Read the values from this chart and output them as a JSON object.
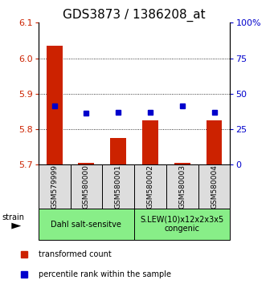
{
  "title": "GDS3873 / 1386208_at",
  "samples": [
    "GSM579999",
    "GSM580000",
    "GSM580001",
    "GSM580002",
    "GSM580003",
    "GSM580004"
  ],
  "red_values": [
    6.035,
    5.705,
    5.775,
    5.825,
    5.705,
    5.825
  ],
  "blue_values": [
    5.865,
    5.845,
    5.848,
    5.848,
    5.866,
    5.847
  ],
  "ylim_left": [
    5.7,
    6.1
  ],
  "ylim_right": [
    0,
    100
  ],
  "yticks_left": [
    5.7,
    5.8,
    5.9,
    6.0,
    6.1
  ],
  "yticks_right": [
    0,
    25,
    50,
    75,
    100
  ],
  "ytick_labels_right": [
    "0",
    "25",
    "50",
    "75",
    "100%"
  ],
  "group1_label": "Dahl salt-sensitve",
  "group2_label": "S.LEW(10)x12x2x3x5\ncongenic",
  "group1_indices": [
    0,
    1,
    2
  ],
  "group2_indices": [
    3,
    4,
    5
  ],
  "legend_red": "transformed count",
  "legend_blue": "percentile rank within the sample",
  "strain_label": "strain",
  "bar_bottom": 5.7,
  "bar_width": 0.5,
  "red_color": "#cc2200",
  "blue_color": "#0000cc",
  "group_bg_color": "#88ee88",
  "sample_bg_color": "#dddddd",
  "title_fontsize": 11,
  "tick_fontsize": 8,
  "label_fontsize": 7
}
